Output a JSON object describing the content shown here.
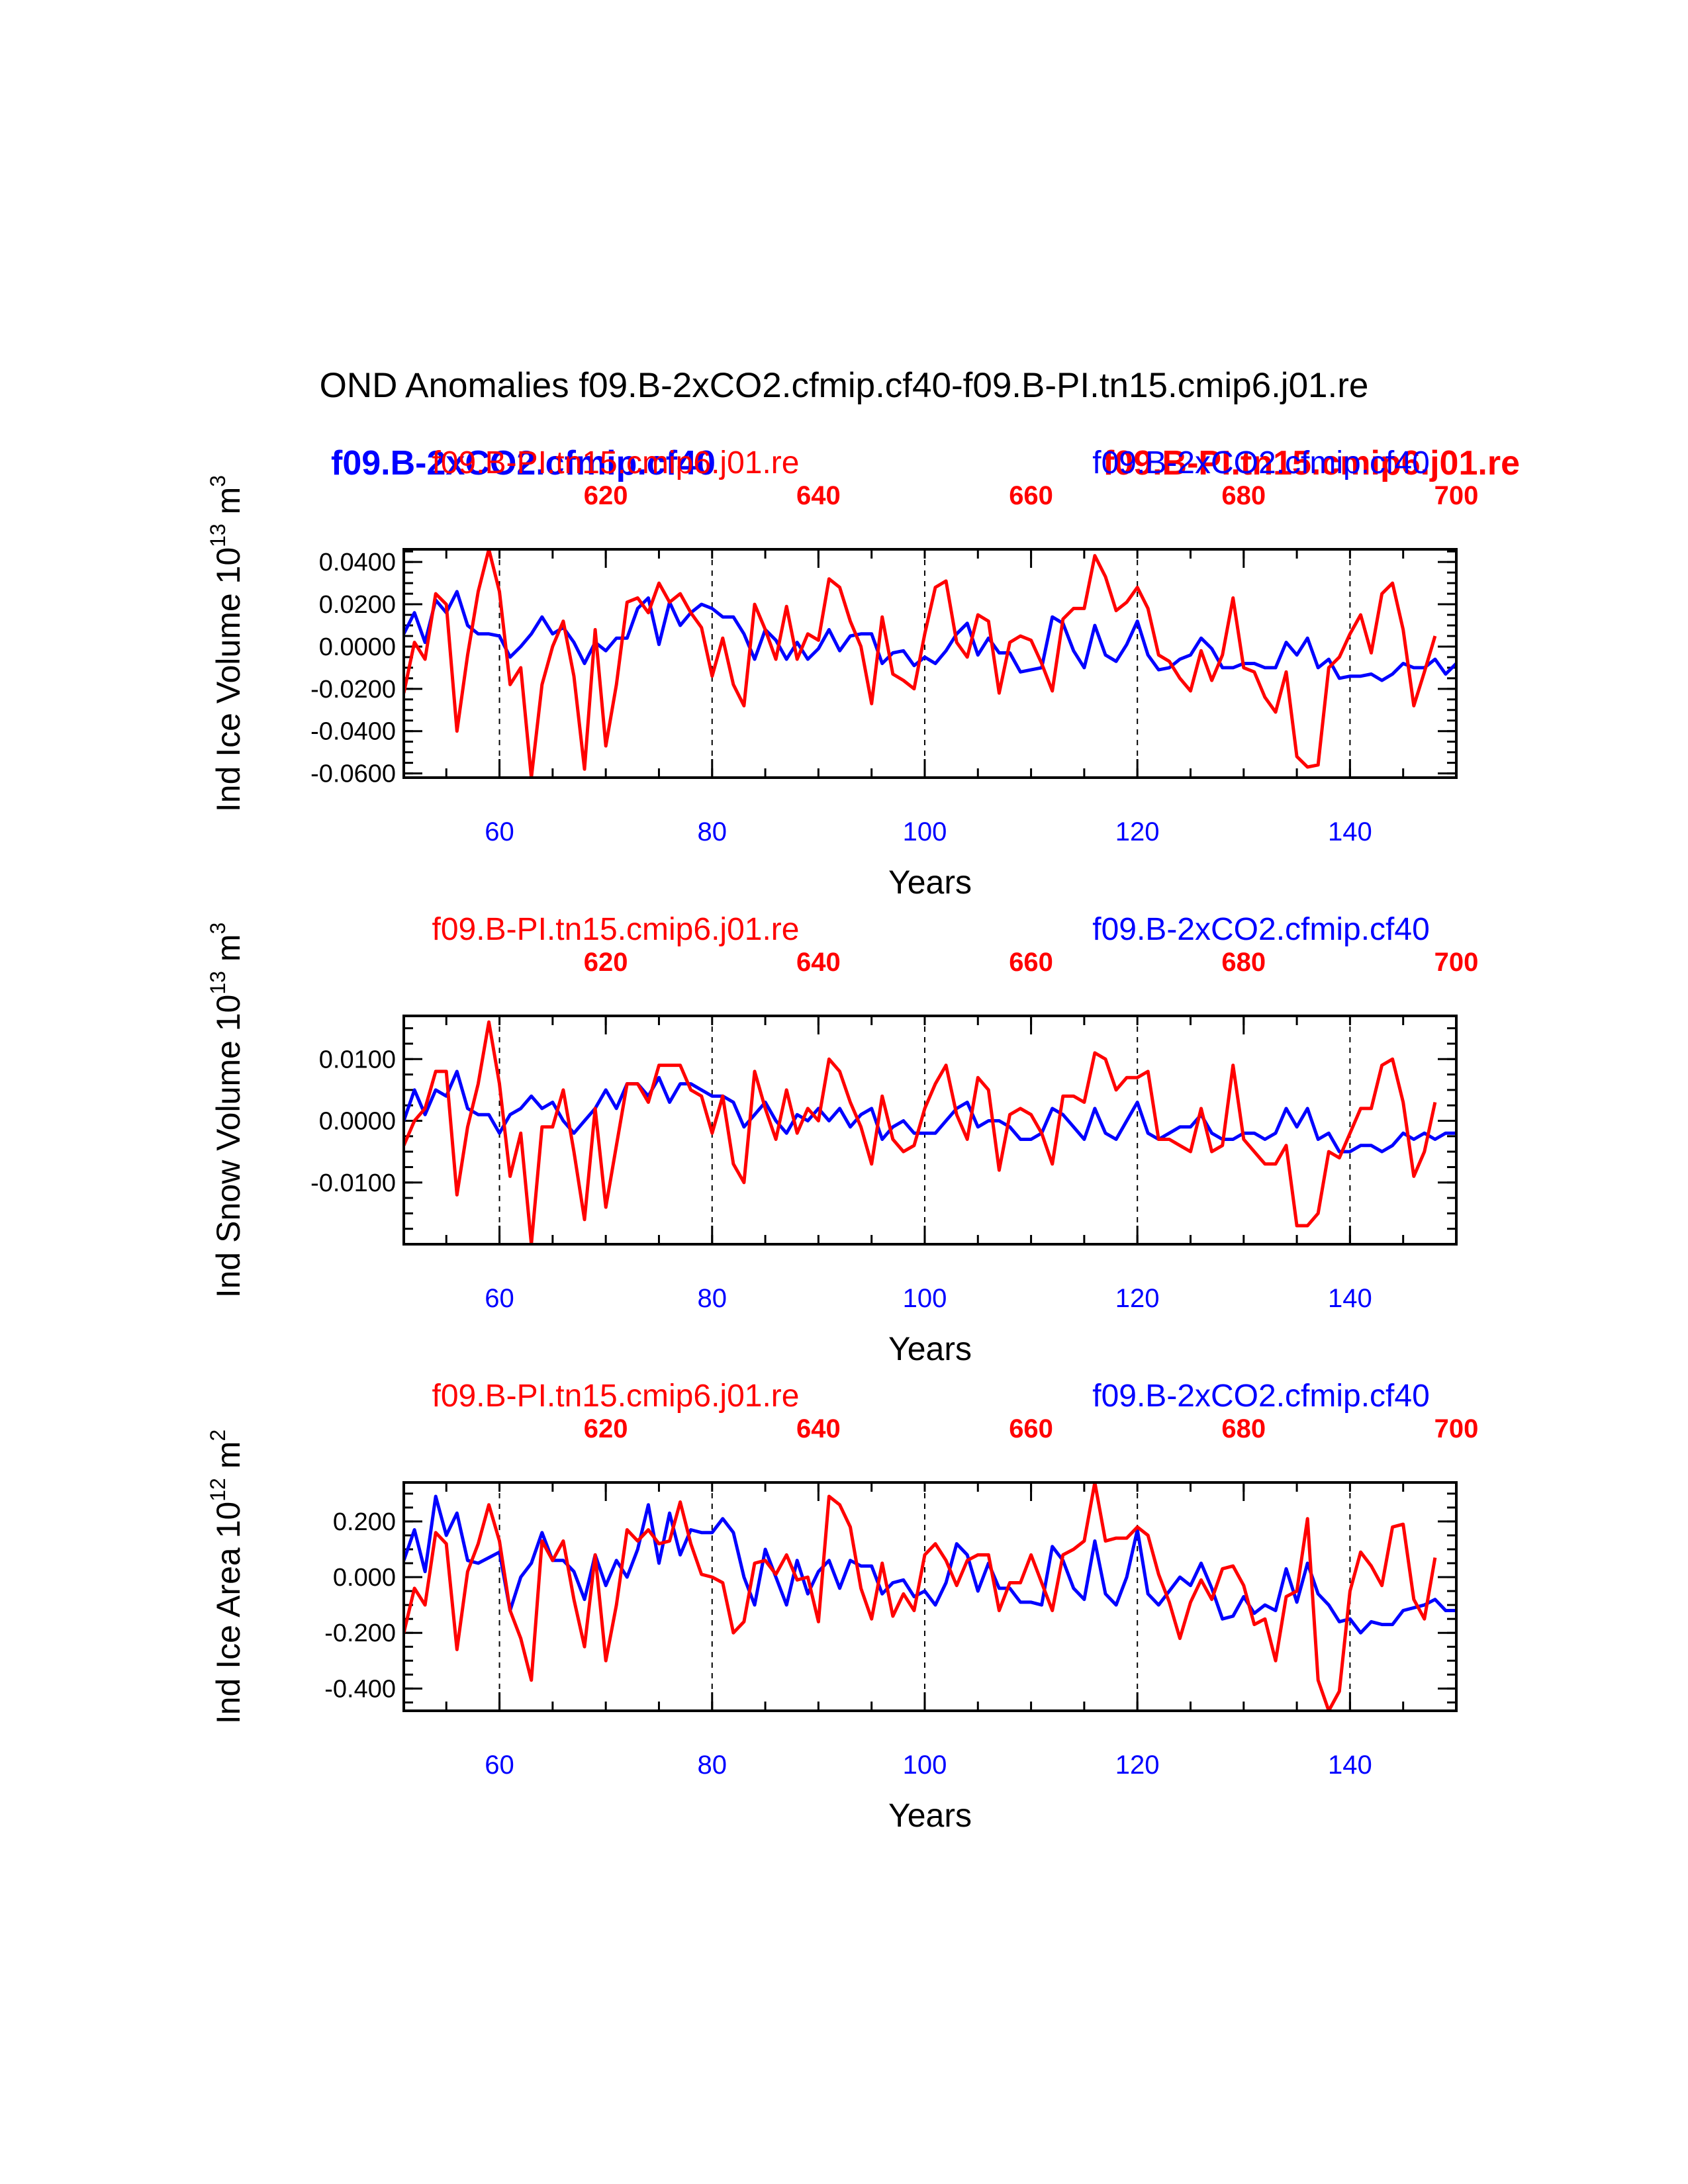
{
  "chart_data": {
    "type": "line",
    "title": "OND Anomalies f09.B-2xCO2.cfmip.cf40-f09.B-PI.tn15.cmip6.j01.re",
    "colors": {
      "case": "#0000ff",
      "control": "#ff0000"
    },
    "overlay_labels": {
      "control": "f09.B-PI.tn15.cmip6.j01.re",
      "case": "f09.B-2xCO2.cfmip.cf40"
    },
    "panels": [
      {
        "ylabel": "Ind Ice Volume 10",
        "yunit_exp": "13",
        "yunit_suffix": " m",
        "yunit_power": "3",
        "xlabel": "Years",
        "series_label_left": "f09.B-PI.tn15.cmip6.j01.re",
        "series_label_right": "f09.B-2xCO2.cfmip.cf40",
        "ylim": [
          -0.062,
          0.046
        ],
        "yticks": [
          0.04,
          0.02,
          0.0,
          -0.02,
          -0.04,
          -0.06
        ],
        "ytick_labels": [
          "0.0400",
          "0.0200",
          "0.0000",
          "-0.0200",
          "-0.0400",
          "-0.0600"
        ],
        "x_bottom_range": [
          51,
          150
        ],
        "x_bottom_ticks": [
          60,
          80,
          100,
          120,
          140
        ],
        "x_top_range": [
          601,
          700
        ],
        "x_top_ticks": [
          620,
          640,
          660,
          680,
          700
        ],
        "series": [
          {
            "name": "f09.B-2xCO2.cfmip.cf40",
            "color": "#0000ff",
            "x_axis": "bottom",
            "values": [
              0.006,
              0.016,
              0.002,
              0.022,
              0.016,
              0.026,
              0.01,
              0.006,
              0.006,
              0.005,
              -0.005,
              0.0,
              0.006,
              0.014,
              0.006,
              0.009,
              0.002,
              -0.008,
              0.002,
              -0.002,
              0.004,
              0.004,
              0.018,
              0.023,
              0.001,
              0.021,
              0.01,
              0.016,
              0.02,
              0.018,
              0.014,
              0.014,
              0.006,
              -0.006,
              0.008,
              0.003,
              -0.006,
              0.002,
              -0.006,
              -0.001,
              0.008,
              -0.002,
              0.005,
              0.006,
              0.006,
              -0.008,
              -0.003,
              -0.002,
              -0.009,
              -0.005,
              -0.008,
              -0.002,
              0.006,
              0.011,
              -0.004,
              0.004,
              -0.003,
              -0.003,
              -0.012,
              -0.011,
              -0.01,
              0.014,
              0.011,
              -0.002,
              -0.01,
              0.01,
              -0.004,
              -0.007,
              0.001,
              0.012,
              -0.004,
              -0.011,
              -0.01,
              -0.006,
              -0.004,
              0.004,
              -0.001,
              -0.01,
              -0.01,
              -0.008,
              -0.008,
              -0.01,
              -0.01,
              0.002,
              -0.004,
              0.004,
              -0.01,
              -0.006,
              -0.015,
              -0.014,
              -0.014,
              -0.013,
              -0.016,
              -0.013,
              -0.008,
              -0.01,
              -0.01,
              -0.006,
              -0.013,
              -0.008,
              -0.011,
              -0.007
            ]
          },
          {
            "name": "f09.B-PI.tn15.cmip6.j01.re",
            "color": "#ff0000",
            "x_axis": "top",
            "values": [
              -0.022,
              0.002,
              -0.006,
              0.025,
              0.02,
              -0.04,
              -0.004,
              0.026,
              0.046,
              0.026,
              -0.018,
              -0.01,
              -0.062,
              -0.018,
              0.0,
              0.012,
              -0.014,
              -0.058,
              0.008,
              -0.047,
              -0.018,
              0.021,
              0.023,
              0.016,
              0.03,
              0.021,
              0.025,
              0.016,
              0.009,
              -0.014,
              0.004,
              -0.018,
              -0.028,
              0.02,
              0.008,
              -0.006,
              0.019,
              -0.006,
              0.006,
              0.003,
              0.032,
              0.028,
              0.012,
              0.0,
              -0.027,
              0.014,
              -0.013,
              -0.016,
              -0.02,
              0.006,
              0.028,
              0.031,
              0.002,
              -0.005,
              0.015,
              0.012,
              -0.022,
              0.002,
              0.005,
              0.003,
              -0.008,
              -0.021,
              0.013,
              0.018,
              0.018,
              0.043,
              0.033,
              0.017,
              0.021,
              0.028,
              0.018,
              -0.004,
              -0.007,
              -0.015,
              -0.021,
              -0.002,
              -0.016,
              -0.004,
              0.023,
              -0.01,
              -0.012,
              -0.024,
              -0.031,
              -0.012,
              -0.052,
              -0.057,
              -0.056,
              -0.01,
              -0.005,
              0.006,
              0.015,
              -0.003,
              0.025,
              0.03,
              0.008,
              -0.028,
              -0.012,
              0.005
            ]
          }
        ]
      },
      {
        "ylabel": "Ind Snow Volume 10",
        "yunit_exp": "13",
        "yunit_suffix": " m",
        "yunit_power": "3",
        "xlabel": "Years",
        "series_label_left": "f09.B-PI.tn15.cmip6.j01.re",
        "series_label_right": "f09.B-2xCO2.cfmip.cf40",
        "ylim": [
          -0.02,
          0.017
        ],
        "yticks": [
          0.01,
          0.0,
          -0.01
        ],
        "ytick_labels": [
          "0.0100",
          "0.0000",
          "-0.0100"
        ],
        "x_bottom_range": [
          51,
          150
        ],
        "x_bottom_ticks": [
          60,
          80,
          100,
          120,
          140
        ],
        "x_top_range": [
          601,
          700
        ],
        "x_top_ticks": [
          620,
          640,
          660,
          680,
          700
        ],
        "series": [
          {
            "name": "f09.B-2xCO2.cfmip.cf40",
            "color": "#0000ff",
            "x_axis": "bottom",
            "values": [
              0.0,
              0.005,
              0.001,
              0.005,
              0.004,
              0.008,
              0.002,
              0.001,
              0.001,
              -0.002,
              0.001,
              0.002,
              0.004,
              0.002,
              0.003,
              0.0,
              -0.002,
              0.0,
              0.002,
              0.005,
              0.002,
              0.006,
              0.006,
              0.004,
              0.007,
              0.003,
              0.006,
              0.006,
              0.005,
              0.004,
              0.004,
              0.003,
              -0.001,
              0.001,
              0.003,
              0.0,
              -0.002,
              0.001,
              0.0,
              0.002,
              0.0,
              0.002,
              -0.001,
              0.001,
              0.002,
              -0.003,
              -0.001,
              0.0,
              -0.002,
              -0.002,
              -0.002,
              0.0,
              0.002,
              0.003,
              -0.001,
              0.0,
              0.0,
              -0.001,
              -0.003,
              -0.003,
              -0.002,
              0.002,
              0.001,
              -0.001,
              -0.003,
              0.002,
              -0.002,
              -0.003,
              0.0,
              0.003,
              -0.002,
              -0.003,
              -0.002,
              -0.001,
              -0.001,
              0.001,
              -0.002,
              -0.003,
              -0.003,
              -0.002,
              -0.002,
              -0.003,
              -0.002,
              0.002,
              -0.001,
              0.002,
              -0.003,
              -0.002,
              -0.005,
              -0.005,
              -0.004,
              -0.004,
              -0.005,
              -0.004,
              -0.002,
              -0.003,
              -0.002,
              -0.003,
              -0.002,
              -0.002
            ]
          },
          {
            "name": "f09.B-PI.tn15.cmip6.j01.re",
            "color": "#ff0000",
            "x_axis": "top",
            "values": [
              -0.004,
              0.0,
              0.002,
              0.008,
              0.008,
              -0.012,
              -0.001,
              0.006,
              0.016,
              0.006,
              -0.009,
              -0.002,
              -0.02,
              -0.001,
              -0.001,
              0.005,
              -0.005,
              -0.016,
              0.002,
              -0.014,
              -0.004,
              0.006,
              0.006,
              0.003,
              0.009,
              0.009,
              0.009,
              0.005,
              0.004,
              -0.002,
              0.004,
              -0.007,
              -0.01,
              0.008,
              0.002,
              -0.003,
              0.005,
              -0.002,
              0.002,
              0.0,
              0.01,
              0.008,
              0.003,
              -0.001,
              -0.007,
              0.004,
              -0.003,
              -0.005,
              -0.004,
              0.002,
              0.006,
              0.009,
              0.001,
              -0.003,
              0.007,
              0.005,
              -0.008,
              0.001,
              0.002,
              0.001,
              -0.002,
              -0.007,
              0.004,
              0.004,
              0.003,
              0.011,
              0.01,
              0.005,
              0.007,
              0.007,
              0.008,
              -0.003,
              -0.003,
              -0.004,
              -0.005,
              0.002,
              -0.005,
              -0.004,
              0.009,
              -0.003,
              -0.005,
              -0.007,
              -0.007,
              -0.004,
              -0.017,
              -0.017,
              -0.015,
              -0.005,
              -0.006,
              -0.002,
              0.002,
              0.002,
              0.009,
              0.01,
              0.003,
              -0.009,
              -0.005,
              0.003
            ]
          }
        ]
      },
      {
        "ylabel": "Ind Ice Area 10",
        "yunit_exp": "12",
        "yunit_suffix": " m",
        "yunit_power": "2",
        "xlabel": "Years",
        "series_label_left": "f09.B-PI.tn15.cmip6.j01.re",
        "series_label_right": "f09.B-2xCO2.cfmip.cf40",
        "ylim": [
          -0.48,
          0.34
        ],
        "yticks": [
          0.2,
          0.0,
          -0.2,
          -0.4
        ],
        "ytick_labels": [
          "0.200",
          "0.000",
          "-0.200",
          "-0.400"
        ],
        "x_bottom_range": [
          51,
          150
        ],
        "x_bottom_ticks": [
          60,
          80,
          100,
          120,
          140
        ],
        "x_top_range": [
          601,
          700
        ],
        "x_top_ticks": [
          620,
          640,
          660,
          680,
          700
        ],
        "series": [
          {
            "name": "f09.B-2xCO2.cfmip.cf40",
            "color": "#0000ff",
            "x_axis": "bottom",
            "values": [
              0.06,
              0.17,
              0.02,
              0.29,
              0.15,
              0.23,
              0.06,
              0.05,
              0.07,
              0.09,
              -0.12,
              0.0,
              0.05,
              0.16,
              0.06,
              0.06,
              0.02,
              -0.08,
              0.08,
              -0.03,
              0.06,
              0.0,
              0.1,
              0.26,
              0.05,
              0.23,
              0.08,
              0.17,
              0.16,
              0.16,
              0.21,
              0.16,
              0.0,
              -0.1,
              0.1,
              0.0,
              -0.1,
              0.06,
              -0.06,
              0.02,
              0.06,
              -0.04,
              0.06,
              0.04,
              0.04,
              -0.06,
              -0.02,
              -0.01,
              -0.07,
              -0.05,
              -0.1,
              -0.02,
              0.12,
              0.08,
              -0.05,
              0.05,
              -0.04,
              -0.04,
              -0.09,
              -0.09,
              -0.1,
              0.11,
              0.06,
              -0.04,
              -0.08,
              0.13,
              -0.06,
              -0.1,
              0.0,
              0.17,
              -0.06,
              -0.1,
              -0.05,
              0.0,
              -0.03,
              0.05,
              -0.04,
              -0.15,
              -0.14,
              -0.07,
              -0.13,
              -0.1,
              -0.12,
              0.03,
              -0.09,
              0.05,
              -0.06,
              -0.1,
              -0.16,
              -0.15,
              -0.2,
              -0.16,
              -0.17,
              -0.17,
              -0.12,
              -0.11,
              -0.1,
              -0.08,
              -0.12,
              -0.12,
              -0.06
            ]
          },
          {
            "name": "f09.B-PI.tn15.cmip6.j01.re",
            "color": "#ff0000",
            "x_axis": "top",
            "values": [
              -0.2,
              -0.04,
              -0.1,
              0.16,
              0.12,
              -0.26,
              0.02,
              0.12,
              0.26,
              0.13,
              -0.12,
              -0.22,
              -0.37,
              0.13,
              0.06,
              0.13,
              -0.08,
              -0.25,
              0.08,
              -0.3,
              -0.1,
              0.17,
              0.13,
              0.17,
              0.12,
              0.13,
              0.27,
              0.12,
              0.01,
              0.0,
              -0.02,
              -0.2,
              -0.16,
              0.05,
              0.06,
              0.01,
              0.08,
              -0.01,
              0.0,
              -0.16,
              0.29,
              0.26,
              0.18,
              -0.04,
              -0.15,
              0.05,
              -0.14,
              -0.06,
              -0.12,
              0.08,
              0.12,
              0.06,
              -0.03,
              0.06,
              0.08,
              0.08,
              -0.12,
              -0.02,
              -0.02,
              0.08,
              -0.02,
              -0.12,
              0.08,
              0.1,
              0.13,
              0.34,
              0.13,
              0.14,
              0.14,
              0.18,
              0.15,
              0.01,
              -0.09,
              -0.22,
              -0.09,
              -0.01,
              -0.08,
              0.03,
              0.04,
              -0.03,
              -0.17,
              -0.15,
              -0.3,
              -0.07,
              -0.05,
              0.21,
              -0.37,
              -0.48,
              -0.41,
              -0.05,
              0.09,
              0.04,
              -0.03,
              0.18,
              0.19,
              -0.08,
              -0.15,
              0.07
            ]
          }
        ]
      }
    ]
  }
}
